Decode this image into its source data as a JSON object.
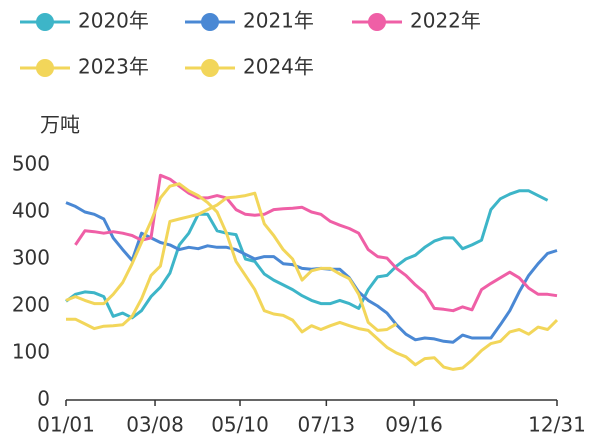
{
  "chart_data": {
    "type": "line",
    "y_label": "万吨",
    "x": [
      1,
      8,
      15,
      22,
      29,
      36,
      43,
      50,
      57,
      64,
      71,
      78,
      85,
      92,
      99,
      106,
      113,
      120,
      127,
      134,
      141,
      148,
      155,
      162,
      169,
      176,
      183,
      190,
      197,
      204,
      211,
      218,
      225,
      232,
      239,
      246,
      253,
      260,
      267,
      274,
      281,
      288,
      295,
      302,
      309,
      316,
      323,
      330,
      337,
      344,
      351,
      358,
      365
    ],
    "xlim": [
      1,
      365
    ],
    "xticks": [
      {
        "value": 1,
        "label": "01/01"
      },
      {
        "value": 67,
        "label": "03/08"
      },
      {
        "value": 130,
        "label": "05/10"
      },
      {
        "value": 194,
        "label": "07/13"
      },
      {
        "value": 259,
        "label": "09/16"
      },
      {
        "value": 365,
        "label": "12/31"
      }
    ],
    "ylim": [
      0,
      500
    ],
    "yticks": [
      0,
      100,
      200,
      300,
      400,
      500
    ],
    "grid": false,
    "legend": "top-left",
    "series": [
      {
        "name": "2020年",
        "color": "#3db5c8",
        "values": [
          210,
          225,
          230,
          228,
          220,
          178,
          185,
          175,
          190,
          220,
          240,
          270,
          330,
          355,
          395,
          395,
          360,
          355,
          352,
          300,
          295,
          268,
          255,
          245,
          235,
          222,
          212,
          205,
          205,
          212,
          205,
          195,
          235,
          262,
          265,
          285,
          300,
          308,
          325,
          338,
          345,
          345,
          322,
          330,
          340,
          405,
          428,
          438,
          445,
          445,
          435,
          425,
          null
        ]
      },
      {
        "name": "2021年",
        "color": "#4a88d4",
        "values": [
          420,
          412,
          400,
          395,
          385,
          345,
          320,
          297,
          355,
          345,
          335,
          330,
          320,
          325,
          322,
          328,
          325,
          325,
          320,
          310,
          300,
          305,
          305,
          290,
          288,
          280,
          278,
          280,
          278,
          278,
          260,
          230,
          212,
          200,
          185,
          160,
          140,
          128,
          132,
          130,
          125,
          123,
          138,
          132,
          132,
          132,
          160,
          190,
          230,
          265,
          290,
          312,
          318
        ]
      },
      {
        "name": "2022年",
        "color": "#ef5fa6",
        "values": [
          null,
          330,
          360,
          358,
          355,
          358,
          355,
          350,
          340,
          345,
          478,
          470,
          455,
          440,
          430,
          430,
          435,
          430,
          405,
          395,
          393,
          395,
          405,
          407,
          408,
          410,
          400,
          395,
          380,
          372,
          365,
          355,
          320,
          305,
          302,
          280,
          265,
          245,
          228,
          195,
          193,
          190,
          198,
          192,
          235,
          248,
          260,
          272,
          260,
          238,
          225,
          225,
          222
        ]
      },
      {
        "name": "2023年",
        "color": "#f2d65a",
        "values": [
          212,
          220,
          212,
          205,
          205,
          225,
          250,
          290,
          335,
          380,
          430,
          455,
          460,
          445,
          435,
          420,
          400,
          355,
          295,
          265,
          235,
          190,
          183,
          180,
          170,
          145,
          158,
          150,
          158,
          165,
          158,
          152,
          148,
          130,
          112,
          100,
          92,
          75,
          88,
          90,
          70,
          65,
          68,
          85,
          105,
          120,
          125,
          145,
          150,
          140,
          155,
          150,
          170
        ]
      },
      {
        "name": "2024年",
        "color": "#f2d65a",
        "values": [
          172,
          172,
          162,
          152,
          157,
          158,
          160,
          178,
          215,
          265,
          285,
          380,
          385,
          390,
          395,
          405,
          415,
          430,
          432,
          435,
          440,
          375,
          350,
          320,
          300,
          255,
          275,
          280,
          280,
          268,
          258,
          225,
          165,
          148,
          150,
          162,
          null,
          null,
          null,
          null,
          null,
          null,
          null,
          null,
          null,
          null,
          null,
          null,
          null,
          null,
          null,
          null,
          null
        ]
      }
    ]
  }
}
